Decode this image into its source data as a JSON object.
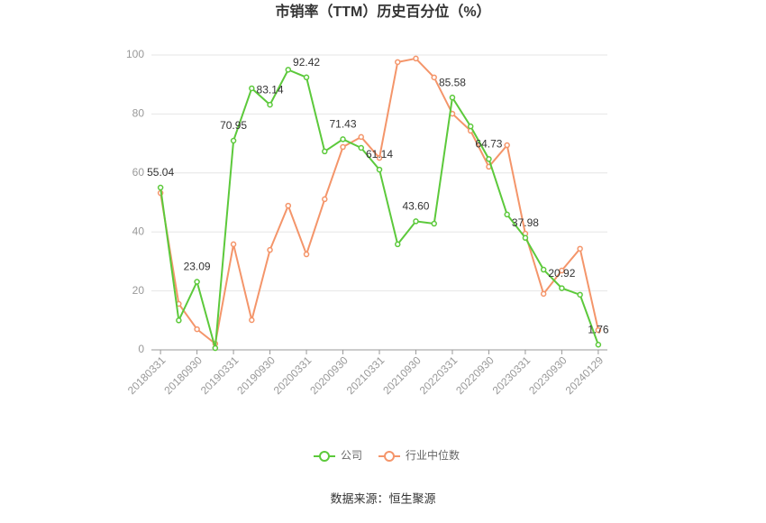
{
  "chart_data": {
    "type": "line",
    "title": "市销率（TTM）历史百分位（%）",
    "source": "数据来源：恒生聚源",
    "categories": [
      "20180331",
      null,
      "20180930",
      null,
      "20190331",
      null,
      "20190930",
      null,
      "20200331",
      null,
      "20200930",
      null,
      "20210331",
      null,
      "20210930",
      null,
      "20220331",
      null,
      "20220930",
      null,
      "20230331",
      null,
      "20230930",
      null,
      "20240129"
    ],
    "series": [
      {
        "name": "公司",
        "color": "#5cc93b",
        "values": [
          55.04,
          10,
          23.09,
          0.6,
          70.95,
          88.7,
          83.14,
          95,
          92.42,
          67.3,
          71.43,
          68.5,
          61.14,
          35.8,
          43.6,
          42.8,
          85.58,
          75.8,
          64.73,
          45.9,
          37.98,
          27.2,
          20.92,
          18.7,
          1.76
        ],
        "value_labels": [
          "55.04",
          null,
          "23.09",
          null,
          "70.95",
          null,
          "83.14",
          null,
          "92.42",
          null,
          "71.43",
          null,
          "61.14",
          null,
          "43.60",
          null,
          "85.58",
          null,
          "64.73",
          null,
          "37.98",
          null,
          "20.92",
          null,
          "1.76"
        ]
      },
      {
        "name": "行业中位数",
        "color": "#f4956a",
        "values": [
          53.2,
          15.6,
          7,
          2.1,
          35.8,
          10.1,
          33.9,
          48.9,
          32.4,
          51.1,
          68.8,
          72.2,
          65.1,
          97.6,
          98.8,
          92.4,
          80.1,
          74.3,
          62.1,
          69.4,
          39.4,
          19,
          26.9,
          34.3,
          6.7
        ]
      }
    ],
    "ylim": [
      0,
      100
    ],
    "yticks": [
      0,
      20,
      40,
      60,
      80,
      100
    ],
    "grid": true
  }
}
